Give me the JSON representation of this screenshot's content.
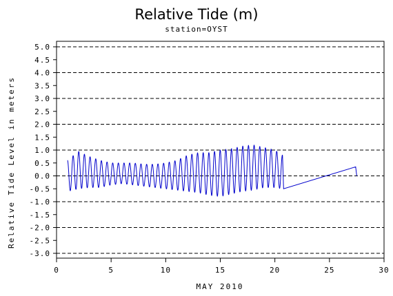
{
  "chart_data": {
    "type": "line",
    "title": "Relative Tide (m)",
    "subtitle": "station=OYST",
    "xlabel": "MAY 2010",
    "ylabel": "Relative Tide Level in meters",
    "xlim": [
      0,
      30
    ],
    "ylim": [
      -3.0,
      5.0
    ],
    "x_ticks": [
      0,
      5,
      10,
      15,
      20,
      25,
      30
    ],
    "y_ticks": [
      "5.0",
      "4.5",
      "4.0",
      "3.5",
      "3.0",
      "2.5",
      "2.0",
      "1.5",
      "1.0",
      "0.5",
      "0.0",
      "-0.5",
      "-1.0",
      "-1.5",
      "-2.0",
      "-2.5",
      "-3.0"
    ],
    "y_grid_dashed": [
      -3,
      -2,
      -1,
      0,
      1,
      2,
      3,
      4,
      5
    ],
    "grid": true,
    "series": [
      {
        "color": "#0000cc",
        "tidal_oscillation": {
          "x_start": 1.0,
          "x_end": 20.7,
          "cycles_per_day": 1.93,
          "highs": [
            [
              1.0,
              0.6
            ],
            [
              2.0,
              0.95
            ],
            [
              3.0,
              0.75
            ],
            [
              4.0,
              0.6
            ],
            [
              5.0,
              0.5
            ],
            [
              6.0,
              0.5
            ],
            [
              7.0,
              0.5
            ],
            [
              8.0,
              0.45
            ],
            [
              9.0,
              0.45
            ],
            [
              10.0,
              0.5
            ],
            [
              11.0,
              0.6
            ],
            [
              12.0,
              0.8
            ],
            [
              13.0,
              0.9
            ],
            [
              14.0,
              0.9
            ],
            [
              15.0,
              1.0
            ],
            [
              16.0,
              1.05
            ],
            [
              17.0,
              1.15
            ],
            [
              18.0,
              1.2
            ],
            [
              19.0,
              1.1
            ],
            [
              20.0,
              1.0
            ],
            [
              20.7,
              0.8
            ]
          ],
          "lows": [
            [
              1.0,
              -0.6
            ],
            [
              2.0,
              -0.5
            ],
            [
              3.0,
              -0.45
            ],
            [
              4.0,
              -0.45
            ],
            [
              5.0,
              -0.35
            ],
            [
              6.0,
              -0.3
            ],
            [
              7.0,
              -0.35
            ],
            [
              8.0,
              -0.4
            ],
            [
              9.0,
              -0.45
            ],
            [
              10.0,
              -0.5
            ],
            [
              11.0,
              -0.55
            ],
            [
              12.0,
              -0.6
            ],
            [
              13.0,
              -0.65
            ],
            [
              14.0,
              -0.75
            ],
            [
              15.0,
              -0.8
            ],
            [
              16.0,
              -0.7
            ],
            [
              17.0,
              -0.6
            ],
            [
              18.0,
              -0.55
            ],
            [
              19.0,
              -0.45
            ],
            [
              20.0,
              -0.45
            ],
            [
              20.7,
              -0.5
            ]
          ]
        },
        "tail_points": [
          [
            20.8,
            -0.5
          ],
          [
            27.4,
            0.35
          ],
          [
            27.5,
            0.0
          ]
        ]
      }
    ]
  }
}
